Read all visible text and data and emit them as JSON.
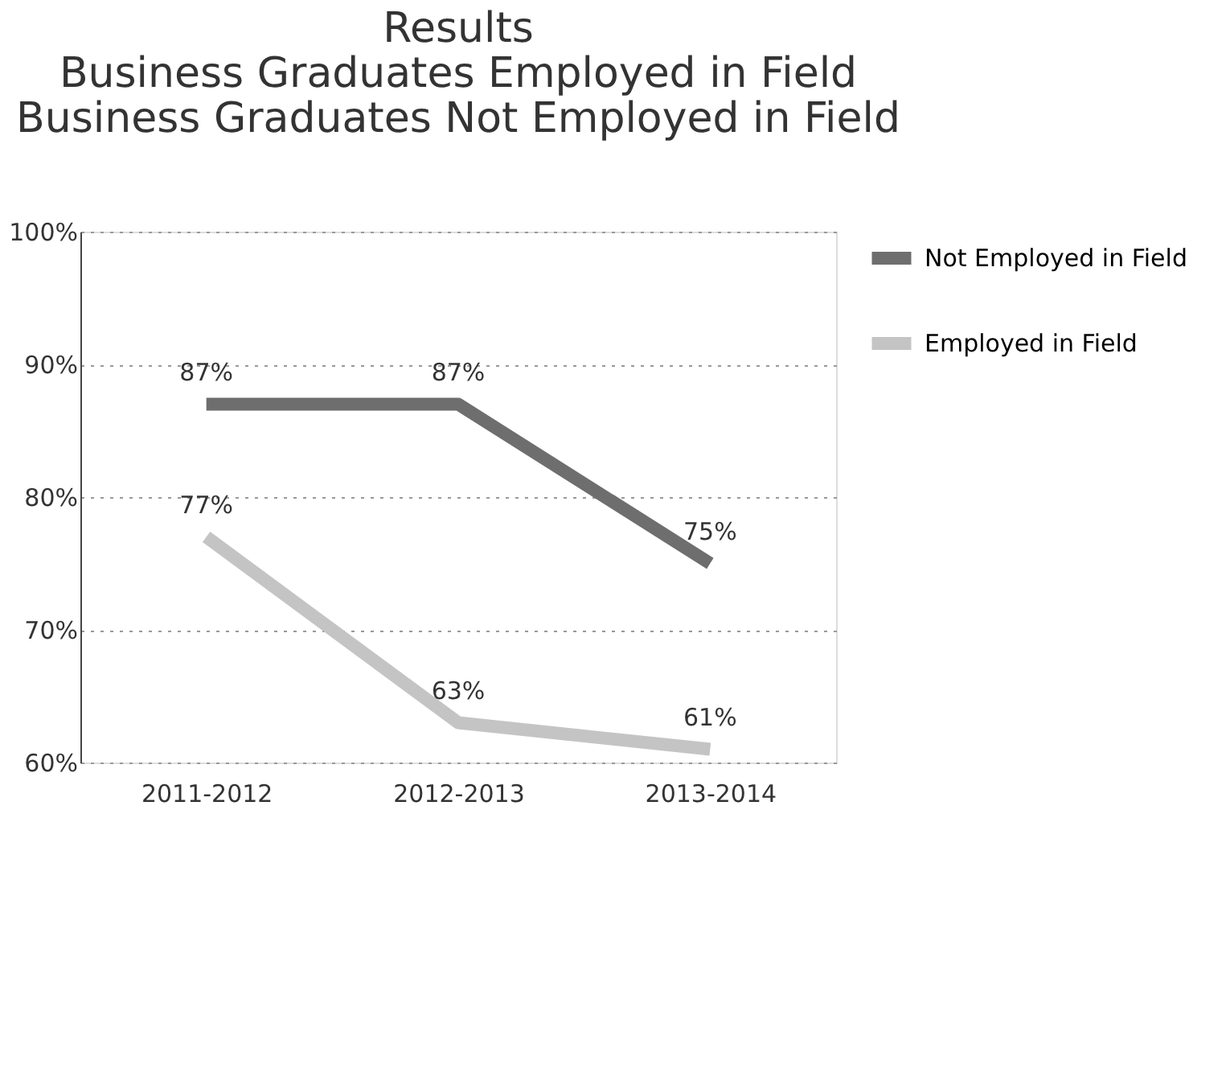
{
  "chart_data": {
    "type": "line",
    "title": "Results\nBusiness Graduates Employed in Field\nBusiness Graduates Not Employed in Field",
    "categories": [
      "2011-2012",
      "2012-2013",
      "2013-2014"
    ],
    "series": [
      {
        "name": "Not Employed in Field",
        "color": "#6e6e6e",
        "values": [
          87,
          87,
          75
        ],
        "value_labels": [
          "87%",
          "87%",
          "75%"
        ]
      },
      {
        "name": "Employed in Field",
        "color": "#c4c4c4",
        "values": [
          77,
          63,
          61
        ],
        "value_labels": [
          "77%",
          "63%",
          "61%"
        ]
      }
    ],
    "ylim": [
      60,
      100
    ],
    "yticks": [
      {
        "value": 60,
        "label": "60%"
      },
      {
        "value": 70,
        "label": "70%"
      },
      {
        "value": 80,
        "label": "80%"
      },
      {
        "value": 90,
        "label": "90%"
      },
      {
        "value": 100,
        "label": "100%"
      }
    ],
    "grid": "y",
    "legend": "right",
    "marker": "none",
    "line_style": "solid"
  }
}
